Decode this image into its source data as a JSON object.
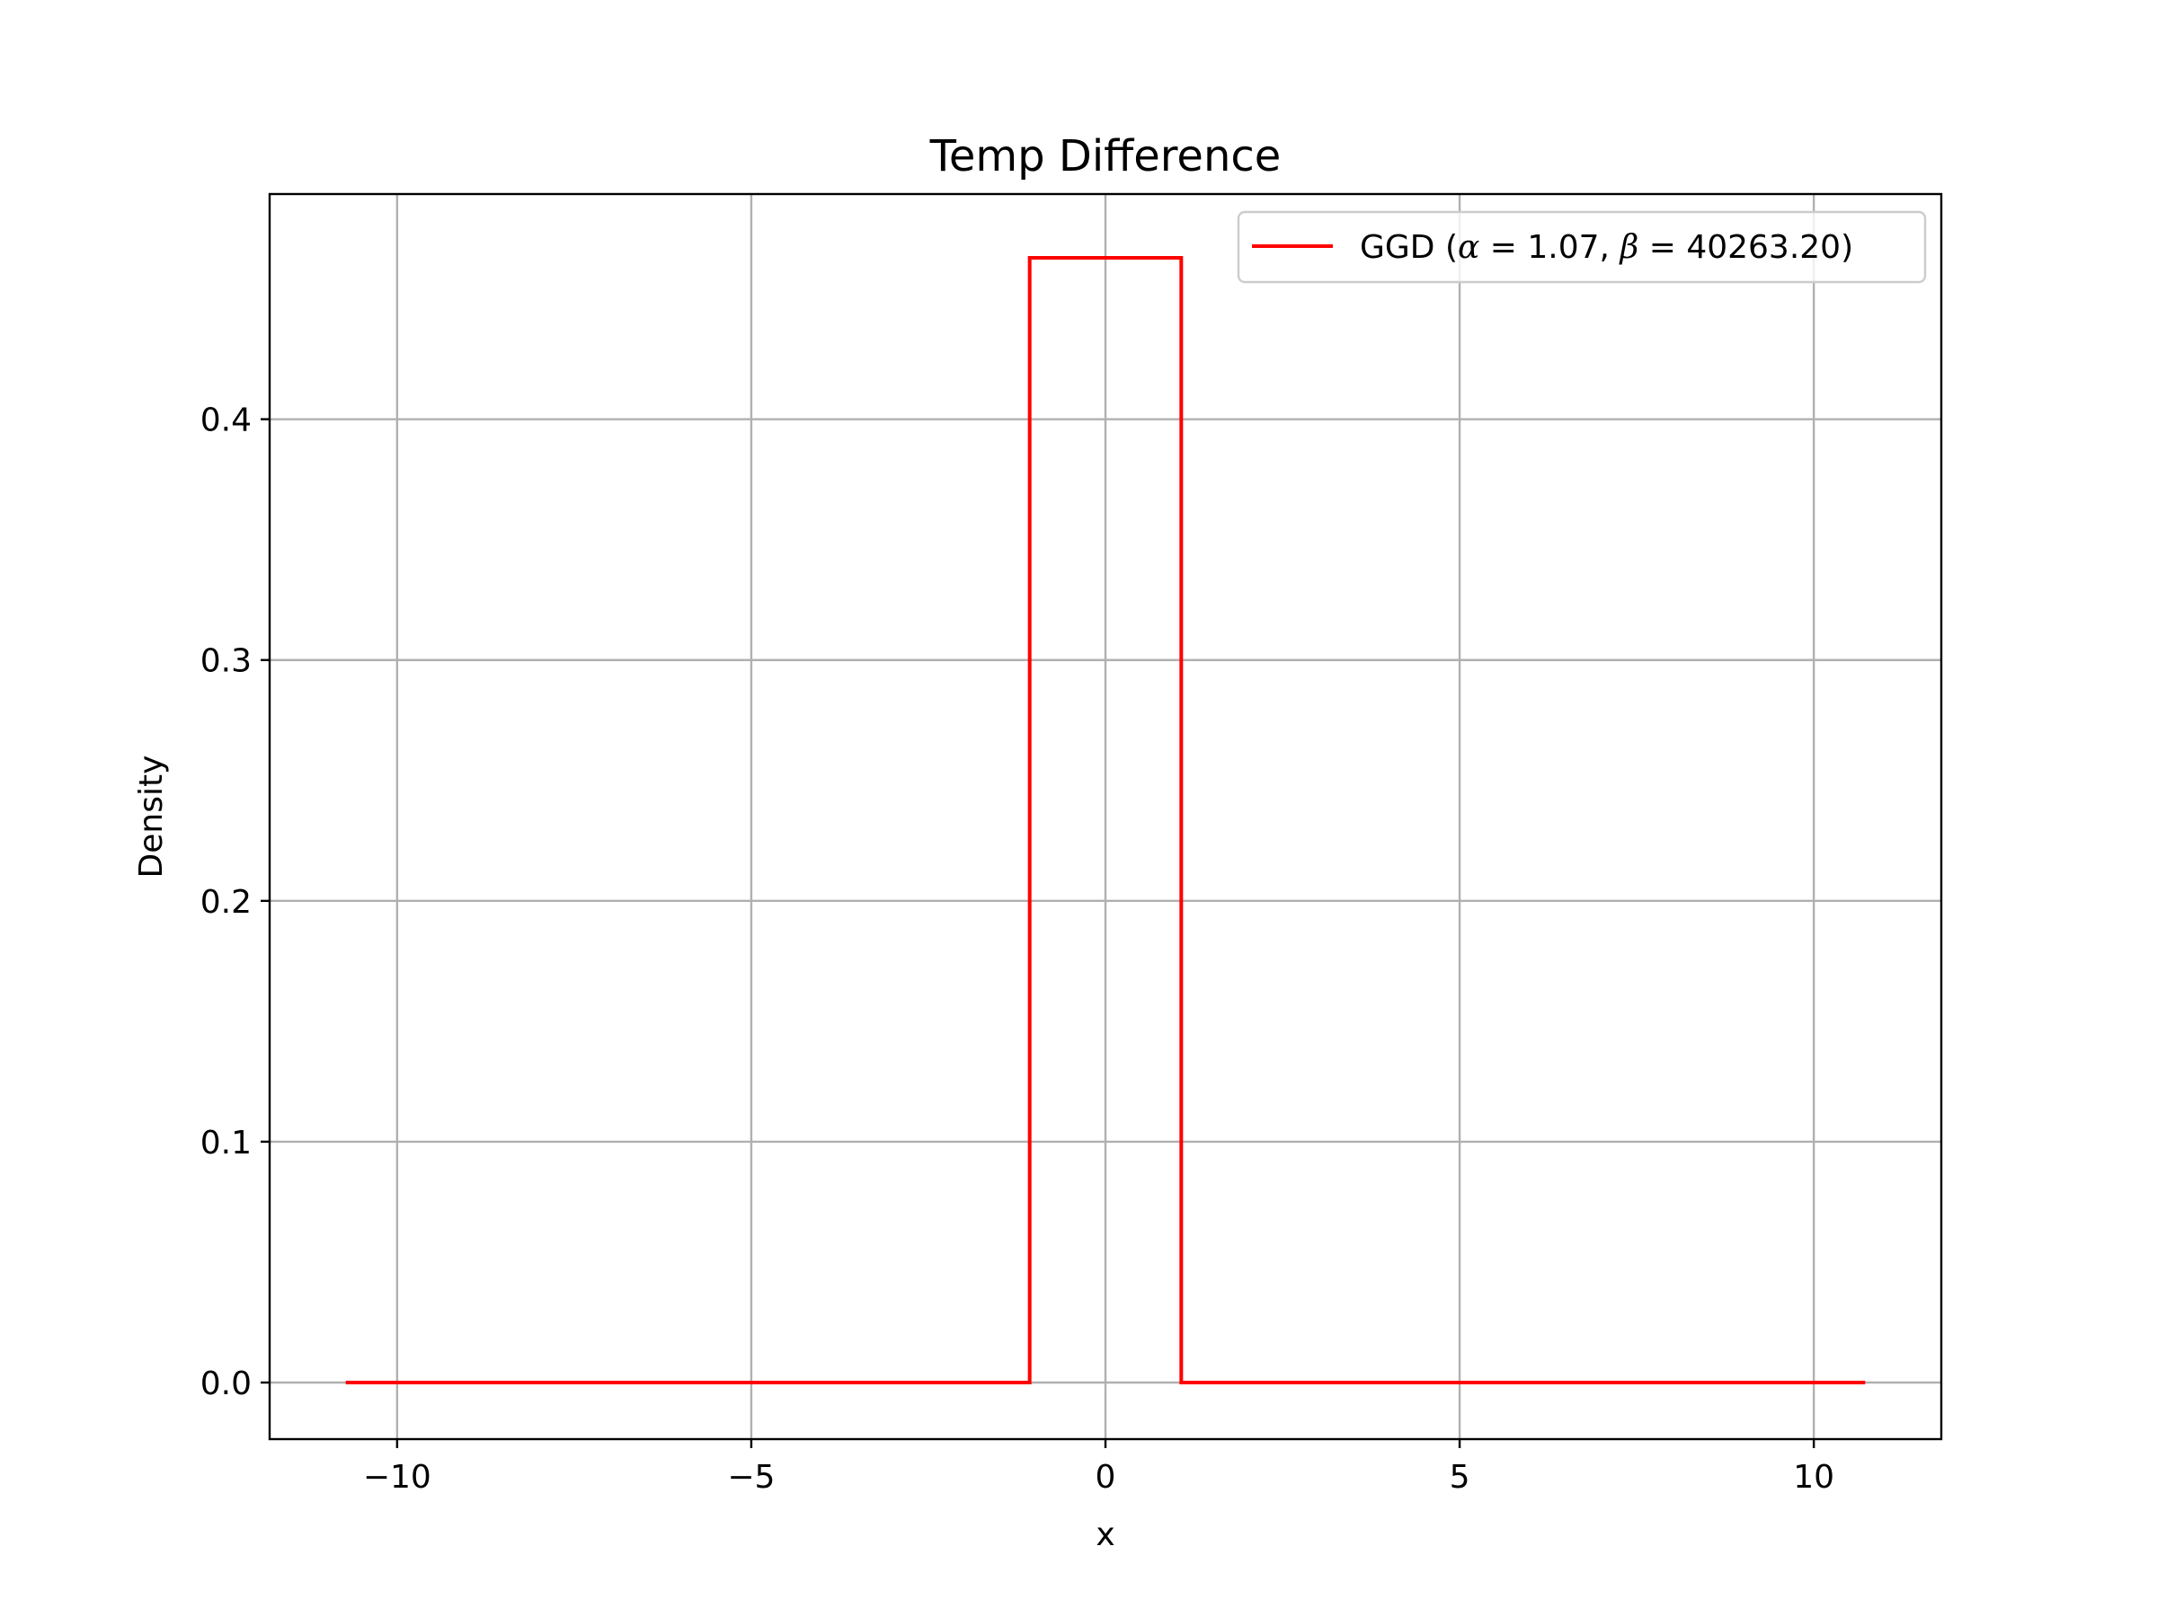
{
  "chart_data": {
    "type": "line",
    "title": "Temp Difference",
    "xlabel": "x",
    "ylabel": "Density",
    "xlim": [
      -11.8,
      11.8
    ],
    "ylim": [
      -0.0235,
      0.4935
    ],
    "x_ticks": [
      -10,
      -5,
      0,
      5,
      10
    ],
    "x_tick_labels": [
      "−10",
      "−5",
      "0",
      "5",
      "10"
    ],
    "y_ticks": [
      0.0,
      0.1,
      0.2,
      0.3,
      0.4
    ],
    "y_tick_labels": [
      "0.0",
      "0.1",
      "0.2",
      "0.3",
      "0.4"
    ],
    "grid": true,
    "legend_position": "top-right",
    "series": [
      {
        "name": "GGD (α = 1.07, β = 40263.20)",
        "legend_parts": {
          "prefix": "GGD (",
          "alpha_symbol": "α",
          "alpha_value": "1.07",
          "beta_symbol": "β",
          "beta_value": "40263.20",
          "suffix": ")"
        },
        "color": "#ff0000",
        "x": [
          -10.7,
          -1.07,
          -1.07,
          1.07,
          1.07,
          10.7
        ],
        "y": [
          0.0,
          0.0,
          0.467,
          0.467,
          0.0,
          0.0
        ]
      }
    ]
  }
}
